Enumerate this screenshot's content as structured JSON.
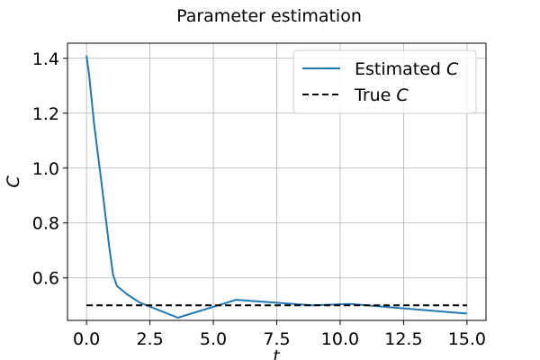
{
  "chart_data": {
    "type": "line",
    "title": "Parameter estimation",
    "xlabel": "t",
    "ylabel": "C",
    "xlim": [
      -0.75,
      15.75
    ],
    "ylim": [
      0.445,
      1.455
    ],
    "grid": true,
    "legend_position": "top-right",
    "x_ticks": [
      0.0,
      2.5,
      5.0,
      7.5,
      10.0,
      12.5,
      15.0
    ],
    "x_tick_labels": [
      "0.0",
      "2.5",
      "5.0",
      "7.5",
      "10.0",
      "12.5",
      "15.0"
    ],
    "y_ticks": [
      0.6,
      0.8,
      1.0,
      1.2,
      1.4
    ],
    "y_tick_labels": [
      "0.6",
      "0.8",
      "1.0",
      "1.2",
      "1.4"
    ],
    "series": [
      {
        "name": "Estimated C",
        "legend_label": "Estimated",
        "legend_symbol": "C",
        "color": "#1f77b4",
        "style": "solid",
        "x": [
          0.0,
          0.1,
          0.3,
          0.6,
          0.9,
          1.05,
          1.2,
          1.6,
          2.1,
          3.6,
          5.9,
          8.9,
          10.4,
          15.0
        ],
        "y": [
          1.41,
          1.34,
          1.16,
          0.94,
          0.71,
          0.61,
          0.57,
          0.54,
          0.51,
          0.455,
          0.52,
          0.5,
          0.505,
          0.47
        ]
      },
      {
        "name": "True C",
        "legend_label": "True",
        "legend_symbol": "C",
        "color": "#000000",
        "style": "dashed",
        "x": [
          0.0,
          15.0
        ],
        "y": [
          0.5,
          0.5
        ]
      }
    ]
  }
}
